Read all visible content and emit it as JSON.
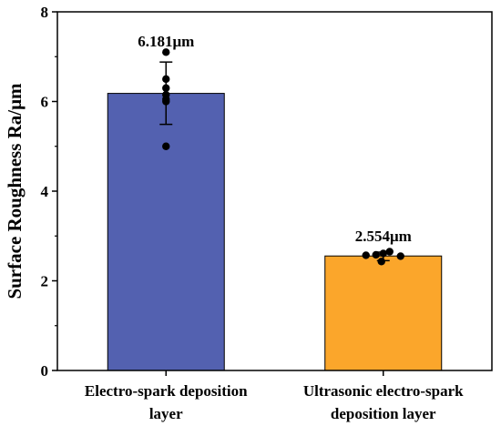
{
  "chart_data": {
    "type": "bar",
    "categories": [
      [
        "Electro-spark deposition",
        "layer"
      ],
      [
        "Ultrasonic electro-spark",
        "deposition layer"
      ]
    ],
    "values": [
      6.181,
      2.554
    ],
    "data_labels": [
      "6.181μm",
      "2.554μm"
    ],
    "error_bars": [
      {
        "low": 5.49,
        "high": 6.88
      },
      {
        "low": 2.45,
        "high": 2.64
      }
    ],
    "points": [
      [
        7.1,
        6.5,
        6.3,
        6.15,
        6.05,
        6.0,
        5.0
      ],
      [
        2.57,
        2.58,
        2.61,
        2.65,
        2.55,
        2.43
      ]
    ],
    "colors": [
      "#5361b0",
      "#fba62b"
    ],
    "title": "",
    "xlabel": "",
    "ylabel": "Surface Roughness Ra/μm",
    "ylim": [
      0,
      8
    ],
    "yticks": [
      0,
      2,
      4,
      6,
      8
    ],
    "grid": false,
    "legend": "none"
  }
}
